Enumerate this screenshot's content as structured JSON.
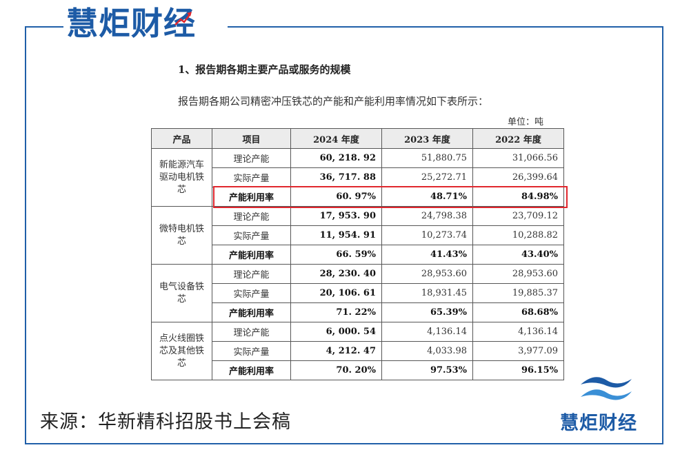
{
  "brand": {
    "title": "慧炬财经",
    "logo_text": "慧炬财经",
    "accent_color": "#1d5ba6",
    "highlight_color": "#e0262d",
    "icons": [
      "rising-arrow-icon",
      "wave-logo-icon"
    ]
  },
  "heading": "1、报告期各期主要产品或服务的规模",
  "intro": "报告期各期公司精密冲压铁芯的产能和产能利用率情况如下表所示：",
  "unit": "单位：吨",
  "table": {
    "headers": [
      "产品",
      "项目",
      "2024 年度",
      "2023 年度",
      "2022 年度"
    ],
    "groups": [
      {
        "product": "新能源汽车驱动电机铁芯",
        "product_lines": [
          "新能源汽车",
          "驱动电机铁",
          "芯"
        ],
        "rows": [
          {
            "item": "理论产能",
            "y2024": "60, 218. 92",
            "y2023": "51,880.75",
            "y2022": "31,066.56"
          },
          {
            "item": "实际产量",
            "y2024": "36, 717. 88",
            "y2023": "25,272.71",
            "y2022": "26,399.64"
          },
          {
            "item": "产能利用率",
            "y2024": "60. 97%",
            "y2023": "48.71%",
            "y2022": "84.98%"
          }
        ]
      },
      {
        "product": "微特电机铁芯",
        "product_lines": [
          "微特电机铁",
          "芯"
        ],
        "rows": [
          {
            "item": "理论产能",
            "y2024": "17, 953. 90",
            "y2023": "24,798.38",
            "y2022": "23,709.12"
          },
          {
            "item": "实际产量",
            "y2024": "11, 954. 91",
            "y2023": "10,273.74",
            "y2022": "10,288.82"
          },
          {
            "item": "产能利用率",
            "y2024": "66. 59%",
            "y2023": "41.43%",
            "y2022": "43.40%"
          }
        ]
      },
      {
        "product": "电气设备铁芯",
        "product_lines": [
          "电气设备铁",
          "芯"
        ],
        "rows": [
          {
            "item": "理论产能",
            "y2024": "28, 230. 40",
            "y2023": "28,953.60",
            "y2022": "28,953.60"
          },
          {
            "item": "实际产量",
            "y2024": "20, 106. 61",
            "y2023": "18,931.45",
            "y2022": "19,885.37"
          },
          {
            "item": "产能利用率",
            "y2024": "71. 22%",
            "y2023": "65.39%",
            "y2022": "68.68%"
          }
        ]
      },
      {
        "product": "点火线圈铁芯及其他铁芯",
        "product_lines": [
          "点火线圈铁",
          "芯及其他铁",
          "芯"
        ],
        "rows": [
          {
            "item": "理论产能",
            "y2024": "6, 000. 54",
            "y2023": "4,136.14",
            "y2022": "4,136.14"
          },
          {
            "item": "实际产量",
            "y2024": "4, 212. 47",
            "y2023": "4,033.98",
            "y2022": "3,977.09"
          },
          {
            "item": "产能利用率",
            "y2024": "70. 20%",
            "y2023": "97.53%",
            "y2022": "96.15%"
          }
        ]
      }
    ]
  },
  "source": "来源：华新精科招股书上会稿"
}
